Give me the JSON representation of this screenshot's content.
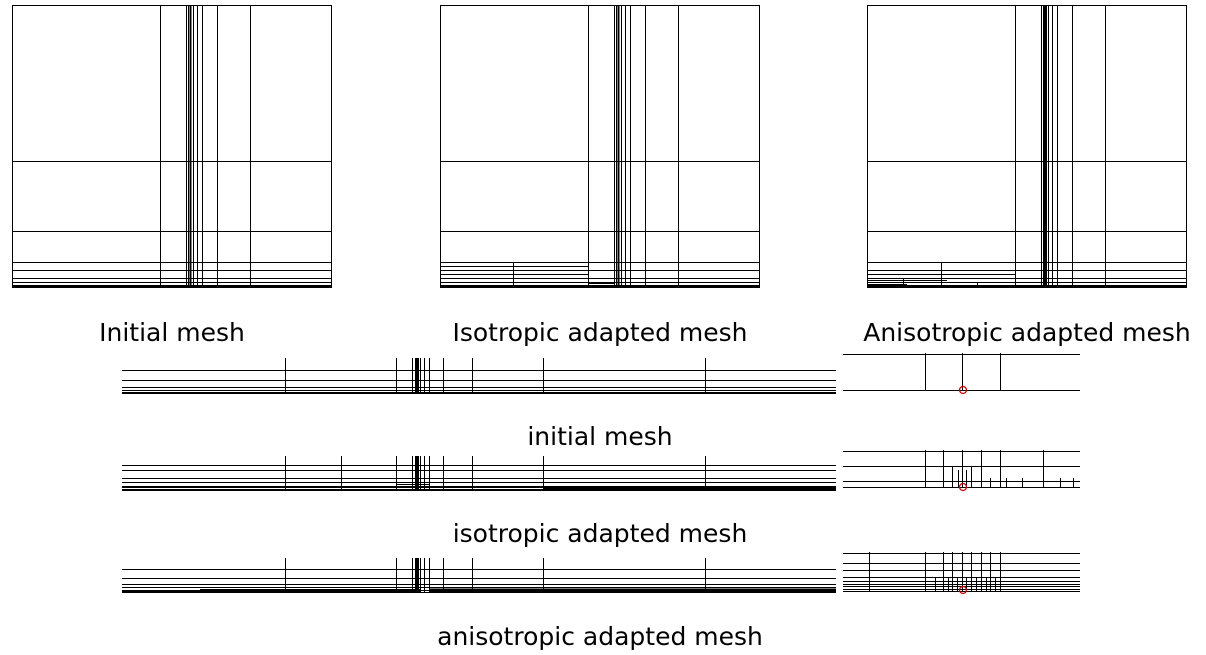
{
  "captions": {
    "top_initial": "Initial mesh",
    "top_isotropic": "Isotropic adapted mesh",
    "top_anisotropic": "Anisotropic adapted mesh",
    "strip_initial": "initial mesh",
    "strip_isotropic": "isotropic adapted mesh",
    "strip_anisotropic": "anisotropic adapted mesh"
  },
  "colors": {
    "mesh_line": "#000000",
    "marker": "#cc0000"
  }
}
